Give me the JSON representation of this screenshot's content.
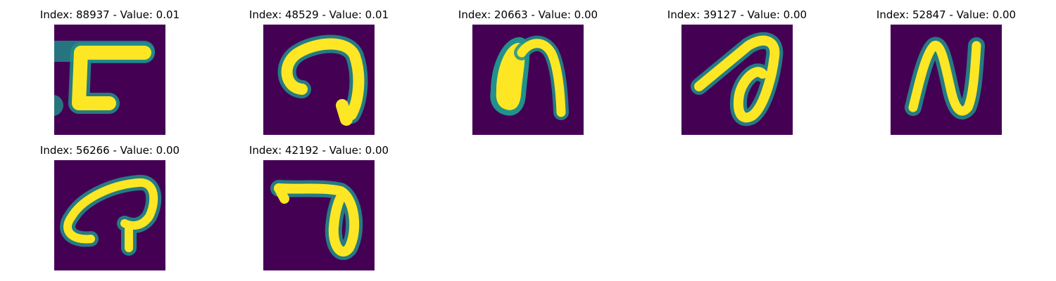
{
  "figure": {
    "background": "#ffffff",
    "colormap": "viridis",
    "panel_background": "#440154",
    "stroke_color": "#fde725",
    "stroke_edge_color": "#21918c",
    "rows": 2,
    "columns": 5
  },
  "panels": [
    {
      "title": "Index: 88937 - Value: 0.01",
      "glyph": "square-bracket-shape"
    },
    {
      "title": "Index: 48529 - Value: 0.01",
      "glyph": "hook-shape"
    },
    {
      "title": "Index: 20663 - Value: 0.00",
      "glyph": "arch-shape"
    },
    {
      "title": "Index: 39127 - Value: 0.00",
      "glyph": "loop-shape"
    },
    {
      "title": "Index: 52847 - Value: 0.00",
      "glyph": "n-shape"
    },
    {
      "title": "Index: 56266 - Value: 0.00",
      "glyph": "curl-shape"
    },
    {
      "title": "Index: 42192 - Value: 0.00",
      "glyph": "hook-loop-shape"
    }
  ]
}
